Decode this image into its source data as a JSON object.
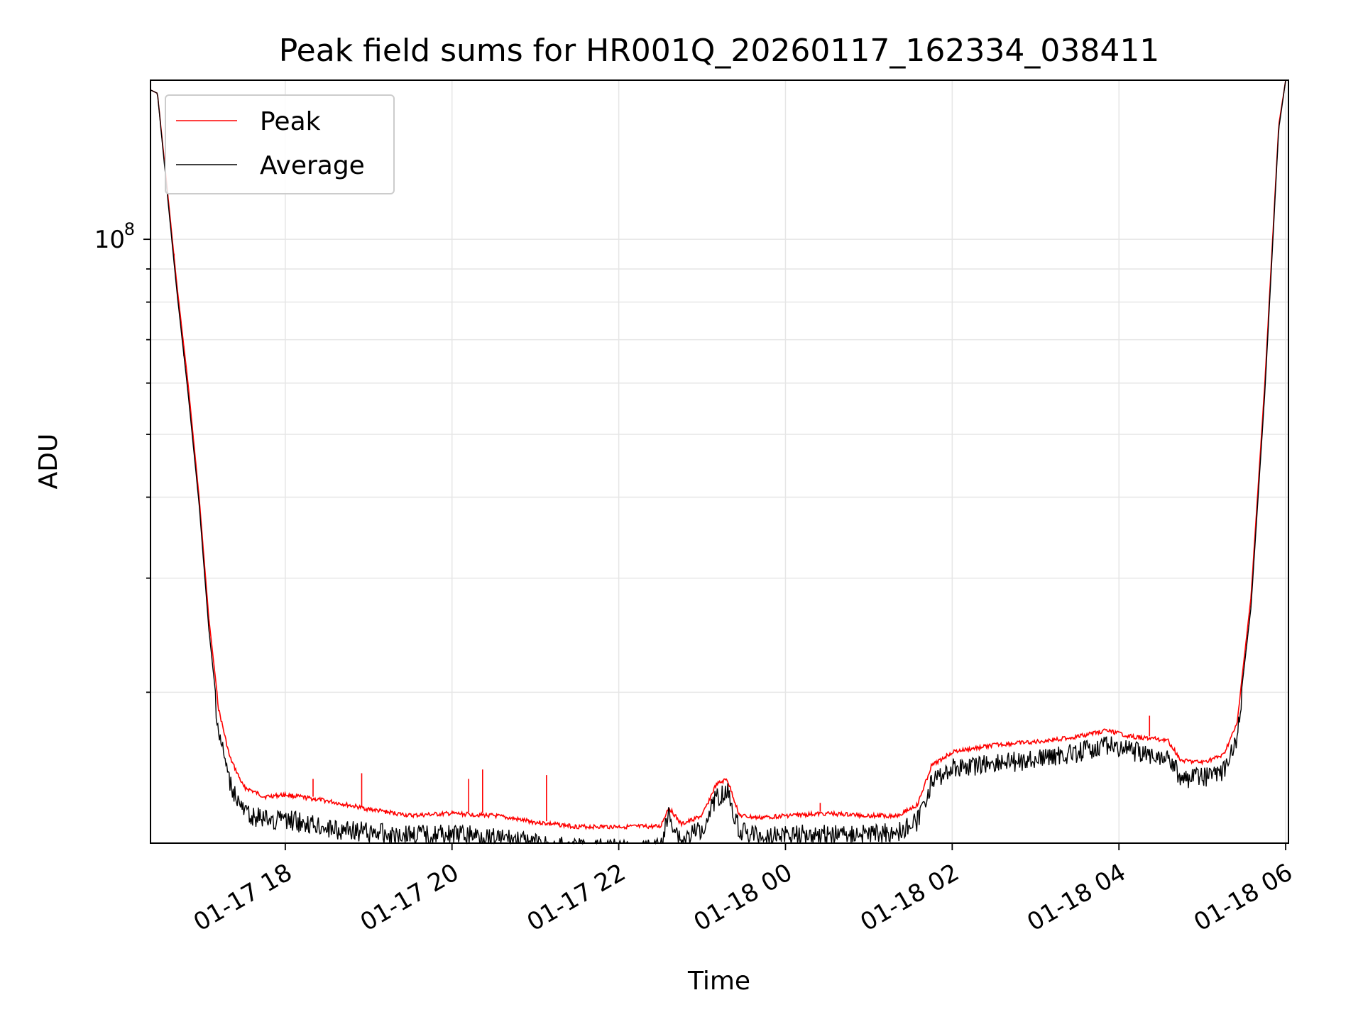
{
  "chart_data": {
    "type": "line",
    "title": "Peak field sums for HR001Q_20260117_162334_038411",
    "xlabel": "Time",
    "ylabel": "ADU",
    "yscale": "log",
    "ylim": [
      11700000,
      176000000
    ],
    "xlim": [
      "2026-01-17 16:23",
      "2026-01-18 06:02"
    ],
    "x_ticks": [
      {
        "value": "2026-01-17 18:00",
        "label": "01-17 18"
      },
      {
        "value": "2026-01-17 20:00",
        "label": "01-17 20"
      },
      {
        "value": "2026-01-17 22:00",
        "label": "01-17 22"
      },
      {
        "value": "2026-01-18 00:00",
        "label": "01-18 00"
      },
      {
        "value": "2026-01-18 02:00",
        "label": "01-18 02"
      },
      {
        "value": "2026-01-18 04:00",
        "label": "01-18 04"
      },
      {
        "value": "2026-01-18 06:00",
        "label": "01-18 06"
      }
    ],
    "y_ticks": [
      {
        "value": 100000000,
        "label": "10",
        "exponent": "8"
      }
    ],
    "grid": true,
    "legend": {
      "position": "top-left",
      "entries": [
        {
          "name": "Peak",
          "color": "#ff0000"
        },
        {
          "name": "Average",
          "color": "#000000"
        }
      ]
    },
    "series": [
      {
        "name": "Peak",
        "color": "#ff0000",
        "points": [
          [
            "2026-01-17 16:23",
            170000000
          ],
          [
            "2026-01-17 16:28",
            168000000
          ],
          [
            "2026-01-17 16:35",
            120000000
          ],
          [
            "2026-01-17 16:42",
            85000000
          ],
          [
            "2026-01-17 16:50",
            60000000
          ],
          [
            "2026-01-17 16:58",
            40000000
          ],
          [
            "2026-01-17 17:05",
            26000000
          ],
          [
            "2026-01-17 17:12",
            19000000
          ],
          [
            "2026-01-17 17:20",
            16000000
          ],
          [
            "2026-01-17 17:30",
            14400000
          ],
          [
            "2026-01-17 17:45",
            13900000
          ],
          [
            "2026-01-17 18:00",
            14000000
          ],
          [
            "2026-01-17 18:30",
            13700000
          ],
          [
            "2026-01-17 19:00",
            13300000
          ],
          [
            "2026-01-17 19:30",
            13000000
          ],
          [
            "2026-01-17 20:00",
            13100000
          ],
          [
            "2026-01-17 20:30",
            13000000
          ],
          [
            "2026-01-17 21:00",
            12700000
          ],
          [
            "2026-01-17 21:30",
            12500000
          ],
          [
            "2026-01-17 22:00",
            12500000
          ],
          [
            "2026-01-17 22:30",
            12500000
          ],
          [
            "2026-01-17 22:36",
            13400000
          ],
          [
            "2026-01-17 22:45",
            12600000
          ],
          [
            "2026-01-17 23:00",
            13000000
          ],
          [
            "2026-01-17 23:10",
            14500000
          ],
          [
            "2026-01-17 23:18",
            14800000
          ],
          [
            "2026-01-17 23:27",
            13000000
          ],
          [
            "2026-01-17 23:40",
            12900000
          ],
          [
            "2026-01-18 00:00",
            13000000
          ],
          [
            "2026-01-18 00:30",
            13100000
          ],
          [
            "2026-01-18 01:00",
            13000000
          ],
          [
            "2026-01-18 01:20",
            13000000
          ],
          [
            "2026-01-18 01:35",
            13500000
          ],
          [
            "2026-01-18 01:45",
            15500000
          ],
          [
            "2026-01-18 02:00",
            16300000
          ],
          [
            "2026-01-18 02:30",
            16700000
          ],
          [
            "2026-01-18 03:00",
            16900000
          ],
          [
            "2026-01-18 03:30",
            17200000
          ],
          [
            "2026-01-18 03:50",
            17600000
          ],
          [
            "2026-01-18 04:10",
            17200000
          ],
          [
            "2026-01-18 04:35",
            17000000
          ],
          [
            "2026-01-18 04:45",
            15800000
          ],
          [
            "2026-01-18 05:00",
            15700000
          ],
          [
            "2026-01-18 05:15",
            16100000
          ],
          [
            "2026-01-18 05:25",
            18000000
          ],
          [
            "2026-01-18 05:35",
            28000000
          ],
          [
            "2026-01-18 05:45",
            60000000
          ],
          [
            "2026-01-18 05:55",
            150000000
          ],
          [
            "2026-01-18 06:00",
            176000000
          ]
        ],
        "spikes": [
          [
            "2026-01-17 16:40",
            95000000
          ],
          [
            "2026-01-17 16:45",
            73000000
          ],
          [
            "2026-01-17 16:47",
            66000000
          ],
          [
            "2026-01-17 18:20",
            14700000
          ],
          [
            "2026-01-17 18:55",
            15000000
          ],
          [
            "2026-01-17 20:12",
            14700000
          ],
          [
            "2026-01-17 20:22",
            15200000
          ],
          [
            "2026-01-17 21:08",
            14900000
          ],
          [
            "2026-01-18 00:25",
            13500000
          ],
          [
            "2026-01-18 04:22",
            18400000
          ]
        ]
      },
      {
        "name": "Average",
        "color": "#000000",
        "points": [
          [
            "2026-01-17 16:23",
            170000000
          ],
          [
            "2026-01-17 16:28",
            168000000
          ],
          [
            "2026-01-17 16:35",
            118000000
          ],
          [
            "2026-01-17 16:42",
            83000000
          ],
          [
            "2026-01-17 16:50",
            58000000
          ],
          [
            "2026-01-17 16:58",
            39000000
          ],
          [
            "2026-01-17 17:05",
            25000000
          ],
          [
            "2026-01-17 17:12",
            18000000
          ],
          [
            "2026-01-17 17:20",
            15000000
          ],
          [
            "2026-01-17 17:30",
            13500000
          ],
          [
            "2026-01-17 17:45",
            13200000
          ],
          [
            "2026-01-17 18:00",
            13200000
          ],
          [
            "2026-01-17 18:30",
            12800000
          ],
          [
            "2026-01-17 19:00",
            12600000
          ],
          [
            "2026-01-17 19:30",
            12500000
          ],
          [
            "2026-01-17 20:00",
            12500000
          ],
          [
            "2026-01-17 20:30",
            12400000
          ],
          [
            "2026-01-17 21:00",
            12100000
          ],
          [
            "2026-01-17 21:30",
            11900000
          ],
          [
            "2026-01-17 22:00",
            11900000
          ],
          [
            "2026-01-17 22:30",
            11900000
          ],
          [
            "2026-01-17 22:36",
            13400000
          ],
          [
            "2026-01-17 22:45",
            12200000
          ],
          [
            "2026-01-17 23:00",
            12800000
          ],
          [
            "2026-01-17 23:10",
            14300000
          ],
          [
            "2026-01-17 23:18",
            14600000
          ],
          [
            "2026-01-17 23:27",
            12700000
          ],
          [
            "2026-01-17 23:40",
            12400000
          ],
          [
            "2026-01-18 00:00",
            12500000
          ],
          [
            "2026-01-18 00:30",
            12500000
          ],
          [
            "2026-01-18 01:00",
            12500000
          ],
          [
            "2026-01-18 01:20",
            12600000
          ],
          [
            "2026-01-18 01:35",
            13100000
          ],
          [
            "2026-01-18 01:45",
            15000000
          ],
          [
            "2026-01-18 02:00",
            15800000
          ],
          [
            "2026-01-18 02:30",
            16100000
          ],
          [
            "2026-01-18 03:00",
            16300000
          ],
          [
            "2026-01-18 03:30",
            16700000
          ],
          [
            "2026-01-18 03:50",
            17200000
          ],
          [
            "2026-01-18 04:10",
            16800000
          ],
          [
            "2026-01-18 04:35",
            16500000
          ],
          [
            "2026-01-18 04:45",
            15300000
          ],
          [
            "2026-01-18 05:00",
            15300000
          ],
          [
            "2026-01-18 05:15",
            15700000
          ],
          [
            "2026-01-18 05:25",
            17500000
          ],
          [
            "2026-01-18 05:35",
            27000000
          ],
          [
            "2026-01-18 05:45",
            58000000
          ],
          [
            "2026-01-18 05:55",
            148000000
          ],
          [
            "2026-01-18 06:00",
            176000000
          ]
        ]
      }
    ]
  }
}
